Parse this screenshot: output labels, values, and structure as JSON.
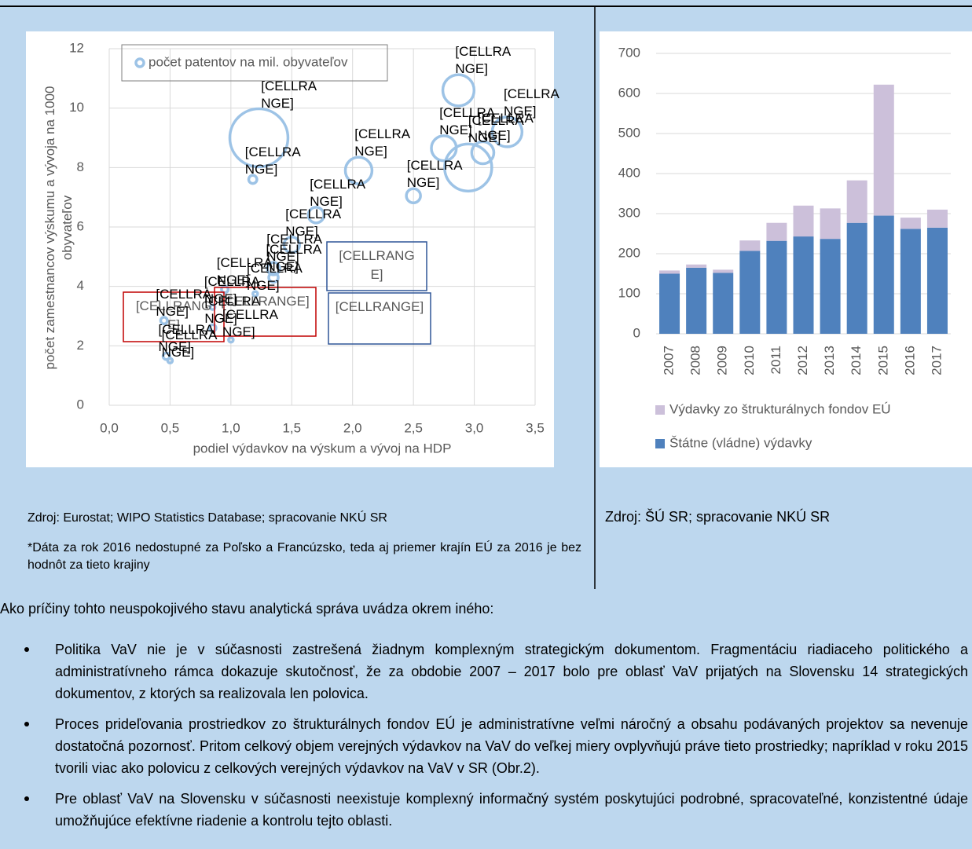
{
  "chart_data": [
    {
      "type": "bubble",
      "xlabel": "podiel výdavkov na výskum a vývoj na HDP",
      "ylabel": "počet zamestnancov výskumu a vývoja na 1000 obyvateľov",
      "xlim": [
        0,
        3.5
      ],
      "xticks": [
        {
          "value": 0,
          "label": "0,0"
        },
        {
          "value": 0.5,
          "label": "0,5"
        },
        {
          "value": 1,
          "label": "1,0"
        },
        {
          "value": 1.5,
          "label": "1,5"
        },
        {
          "value": 2,
          "label": "2,0"
        },
        {
          "value": 2.5,
          "label": "2,5"
        },
        {
          "value": 3,
          "label": "3,0"
        },
        {
          "value": 3.5,
          "label": "3,5"
        }
      ],
      "ylim": [
        0,
        12
      ],
      "yticks": [
        0,
        2,
        4,
        6,
        8,
        10,
        12
      ],
      "grid": true,
      "series": [
        {
          "name": "počet patentov na mil. obyvateľov",
          "color": "#9dc3e6",
          "x": [
            1.23,
            1.18,
            2.05,
            1.7,
            2.5,
            2.75,
            2.87,
            2.95,
            3.07,
            3.27,
            1.5,
            1.35,
            1.35,
            0.45,
            0.47,
            0.5,
            0.85,
            0.95,
            1.0,
            1.2,
            0.85
          ],
          "values": [
            9.0,
            7.6,
            7.9,
            6.4,
            7.05,
            8.65,
            10.6,
            8.0,
            8.5,
            9.2,
            5.4,
            4.6,
            4.3,
            2.85,
            1.65,
            1.5,
            2.6,
            3.9,
            2.2,
            3.75,
            3.3
          ],
          "sizes": [
            152,
            3,
            32,
            11,
            9,
            28,
            44,
            100,
            22,
            40,
            11,
            7,
            4,
            2,
            2,
            1,
            2,
            2,
            1,
            1,
            1
          ],
          "labels": [
            "[CELLRANGE]",
            "[CELLRANGE]",
            "[CELLRANGE]",
            "[CELLRANGE]",
            "[CELLRANGE]",
            "[CELLRANGE]",
            "[CELLRANGE]",
            "[CELLRANGE]",
            "[CELLRANGE]",
            "[CELLRANGE]",
            "[CELLRANGE]",
            "[CELLRANGE]",
            "[CELLRANGE]",
            "[CELLRANGE]",
            "[CELLRANGE]",
            "[CELLRANGE]",
            "[CELLRANGE]",
            "[CELLRANGE]",
            "[CELLRANGE]",
            "[CELLRANGE]",
            "[CELLRANGE]"
          ]
        }
      ],
      "annotations": [
        {
          "text": "[CELLRANGE]",
          "color": "#c00000"
        },
        {
          "text": "[CELLRANGE]",
          "color": "#c00000"
        },
        {
          "text": "[CELLRANGE]",
          "color": "#2f5597"
        },
        {
          "text": "[CELLRANGE]",
          "color": "#2f5597"
        }
      ]
    },
    {
      "type": "bar",
      "stacked": true,
      "categories": [
        "2007",
        "2008",
        "2009",
        "2010",
        "2011",
        "2012",
        "2013",
        "2014",
        "2015",
        "2016",
        "2017"
      ],
      "ylim": [
        0,
        700
      ],
      "yticks": [
        0,
        100,
        200,
        300,
        400,
        500,
        600,
        700
      ],
      "grid": true,
      "series": [
        {
          "name": "Štátne (vládne) výdavky",
          "color": "#4f81bd",
          "values": [
            150,
            165,
            152,
            207,
            232,
            243,
            237,
            277,
            295,
            262,
            265
          ]
        },
        {
          "name": "Výdavky zo štrukturálnych fondov EÚ",
          "color": "#ccc0da",
          "values": [
            8,
            8,
            8,
            26,
            45,
            77,
            76,
            106,
            327,
            28,
            45
          ]
        }
      ]
    }
  ],
  "document": {
    "source_left": "Zdroj: Eurostat; WIPO Statistics Database; spracovanie NKÚ SR",
    "note_left": "*Dáta za rok 2016 nedostupné za Poľsko a Francúzsko, teda aj priemer krajín EÚ za 2016 je bez hodnôt za tieto krajiny",
    "source_right": "Zdroj: ŠÚ SR; spracovanie NKÚ SR",
    "intro": "Ako príčiny tohto neuspokojivého stavu analytická správa uvádza okrem iného:",
    "bullets": [
      "Politika VaV nie je v súčasnosti zastrešená žiadnym komplexným strategickým dokumentom. Fragmentáciu riadiaceho politického a administratívneho rámca dokazuje skutočnosť, že za obdobie 2007 – 2017 bolo pre oblasť VaV prijatých na Slovensku 14 strategických dokumentov, z ktorých sa realizovala len polovica.",
      "Proces prideľovania prostriedkov zo štrukturálnych fondov EÚ je administratívne veľmi náročný a obsahu podávaných projektov sa nevenuje dostatočná pozornosť. Pritom celkový objem verejných výdavkov na VaV do veľkej miery ovplyvňujú práve tieto prostriedky; napríklad v roku 2015 tvorili viac ako polovicu z celkových verejných výdavkov na VaV v SR (Obr.2).",
      "Pre oblasť VaV na Slovensku v súčasnosti neexistuje komplexný informačný systém poskytujúci podrobné, spracovateľné, konzistentné údaje umožňujúce efektívne riadenie a kontrolu tejto oblasti."
    ]
  }
}
